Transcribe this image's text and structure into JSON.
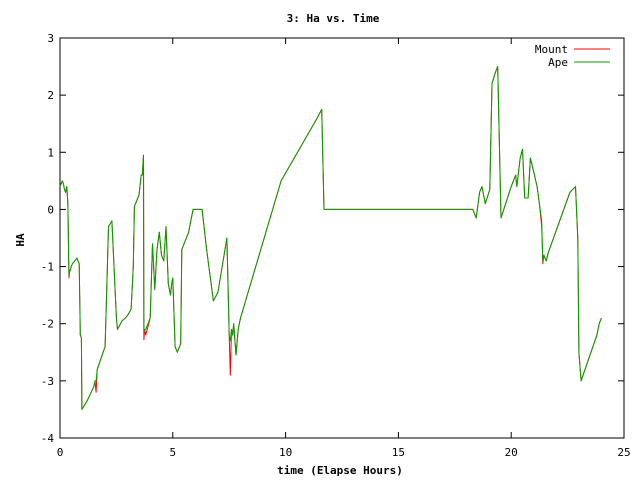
{
  "chart_data": {
    "type": "line",
    "title": "3: Ha vs. Time",
    "xlabel": "time (Elapse Hours)",
    "ylabel": "HA",
    "xlim": [
      0,
      25
    ],
    "ylim": [
      -4,
      3
    ],
    "xticks": [
      0,
      5,
      10,
      15,
      20,
      25
    ],
    "yticks": [
      -4,
      -3,
      -2,
      -1,
      0,
      1,
      2,
      3
    ],
    "grid": false,
    "legend_position": "top-right",
    "series": [
      {
        "name": "Mount",
        "color": "#ff0000",
        "points": [
          [
            0.0,
            0.4
          ],
          [
            0.1,
            0.5
          ],
          [
            0.15,
            0.45
          ],
          [
            0.2,
            0.35
          ],
          [
            0.25,
            0.3
          ],
          [
            0.3,
            0.4
          ],
          [
            0.32,
            0.3
          ],
          [
            0.35,
            0.05
          ],
          [
            0.37,
            -0.4
          ],
          [
            0.38,
            -0.85
          ],
          [
            0.4,
            -1.2
          ],
          [
            0.42,
            -1.1
          ],
          [
            0.5,
            -1.0
          ],
          [
            0.55,
            -0.95
          ],
          [
            0.65,
            -0.9
          ],
          [
            0.75,
            -0.85
          ],
          [
            0.8,
            -0.9
          ],
          [
            0.85,
            -0.95
          ],
          [
            0.9,
            -2.2
          ],
          [
            0.95,
            -2.25
          ],
          [
            0.97,
            -3.5
          ],
          [
            1.2,
            -3.35
          ],
          [
            1.5,
            -3.1
          ],
          [
            1.55,
            -3.0
          ],
          [
            1.6,
            -3.2
          ],
          [
            1.65,
            -2.8
          ],
          [
            2.0,
            -2.4
          ],
          [
            2.15,
            -0.3
          ],
          [
            2.3,
            -0.2
          ],
          [
            2.5,
            -1.9
          ],
          [
            2.55,
            -2.1
          ],
          [
            2.75,
            -1.95
          ],
          [
            2.9,
            -1.9
          ],
          [
            3.0,
            -1.85
          ],
          [
            3.15,
            -1.75
          ],
          [
            3.25,
            -1.0
          ],
          [
            3.3,
            0.05
          ],
          [
            3.5,
            0.25
          ],
          [
            3.6,
            0.6
          ],
          [
            3.65,
            0.6
          ],
          [
            3.7,
            0.95
          ],
          [
            3.72,
            -2.28
          ],
          [
            3.75,
            -2.1
          ],
          [
            3.8,
            -2.2
          ],
          [
            4.0,
            -1.9
          ],
          [
            4.1,
            -0.6
          ],
          [
            4.2,
            -1.4
          ],
          [
            4.3,
            -0.7
          ],
          [
            4.4,
            -0.4
          ],
          [
            4.5,
            -0.8
          ],
          [
            4.6,
            -0.9
          ],
          [
            4.7,
            -0.3
          ],
          [
            4.8,
            -1.3
          ],
          [
            4.9,
            -1.5
          ],
          [
            4.95,
            -1.3
          ],
          [
            5.0,
            -1.2
          ],
          [
            5.1,
            -2.4
          ],
          [
            5.2,
            -2.5
          ],
          [
            5.35,
            -2.35
          ],
          [
            5.4,
            -0.7
          ],
          [
            5.5,
            -0.6
          ],
          [
            5.7,
            -0.4
          ],
          [
            5.8,
            -0.2
          ],
          [
            5.9,
            0.0
          ],
          [
            6.3,
            0.0
          ],
          [
            6.5,
            -0.7
          ],
          [
            6.8,
            -1.6
          ],
          [
            7.0,
            -1.45
          ],
          [
            7.4,
            -0.5
          ],
          [
            7.5,
            -2.2
          ],
          [
            7.55,
            -2.9
          ],
          [
            7.6,
            -2.1
          ],
          [
            7.65,
            -2.2
          ],
          [
            7.7,
            -2.0
          ],
          [
            7.8,
            -2.55
          ],
          [
            7.9,
            -2.1
          ],
          [
            8.0,
            -1.9
          ],
          [
            9.8,
            0.5
          ],
          [
            11.4,
            1.6
          ],
          [
            11.6,
            1.75
          ],
          [
            11.7,
            0.0
          ],
          [
            18.3,
            0.0
          ],
          [
            18.45,
            -0.15
          ],
          [
            18.6,
            0.3
          ],
          [
            18.7,
            0.4
          ],
          [
            18.85,
            0.1
          ],
          [
            19.05,
            0.35
          ],
          [
            19.15,
            2.2
          ],
          [
            19.3,
            2.4
          ],
          [
            19.4,
            2.5
          ],
          [
            19.55,
            -0.15
          ],
          [
            20.0,
            0.4
          ],
          [
            20.2,
            0.6
          ],
          [
            20.25,
            0.4
          ],
          [
            20.4,
            0.9
          ],
          [
            20.5,
            1.05
          ],
          [
            20.6,
            0.2
          ],
          [
            20.75,
            0.2
          ],
          [
            20.85,
            0.9
          ],
          [
            21.0,
            0.65
          ],
          [
            21.15,
            0.4
          ],
          [
            21.25,
            0.1
          ],
          [
            21.35,
            -0.3
          ],
          [
            21.4,
            -0.95
          ],
          [
            21.45,
            -0.8
          ],
          [
            21.55,
            -0.9
          ],
          [
            21.65,
            -0.75
          ],
          [
            22.6,
            0.3
          ],
          [
            22.85,
            0.4
          ],
          [
            22.95,
            -0.5
          ],
          [
            23.0,
            -2.5
          ],
          [
            23.1,
            -3.0
          ],
          [
            23.8,
            -2.2
          ],
          [
            23.9,
            -2.0
          ],
          [
            24.0,
            -1.9
          ]
        ]
      },
      {
        "name": "Ape",
        "color": "#00a000",
        "points": [
          [
            0.0,
            0.4
          ],
          [
            0.1,
            0.5
          ],
          [
            0.15,
            0.45
          ],
          [
            0.2,
            0.35
          ],
          [
            0.25,
            0.3
          ],
          [
            0.3,
            0.4
          ],
          [
            0.32,
            0.3
          ],
          [
            0.35,
            0.1
          ],
          [
            0.37,
            -0.4
          ],
          [
            0.38,
            -0.85
          ],
          [
            0.4,
            -1.15
          ],
          [
            0.42,
            -1.1
          ],
          [
            0.5,
            -1.0
          ],
          [
            0.55,
            -0.95
          ],
          [
            0.65,
            -0.9
          ],
          [
            0.75,
            -0.85
          ],
          [
            0.8,
            -0.9
          ],
          [
            0.85,
            -0.95
          ],
          [
            0.9,
            -2.2
          ],
          [
            0.95,
            -2.25
          ],
          [
            0.97,
            -3.5
          ],
          [
            1.2,
            -3.35
          ],
          [
            1.5,
            -3.1
          ],
          [
            1.55,
            -3.0
          ],
          [
            1.6,
            -3.0
          ],
          [
            1.65,
            -2.8
          ],
          [
            2.0,
            -2.4
          ],
          [
            2.15,
            -0.3
          ],
          [
            2.3,
            -0.2
          ],
          [
            2.5,
            -1.9
          ],
          [
            2.55,
            -2.1
          ],
          [
            2.75,
            -1.95
          ],
          [
            2.9,
            -1.9
          ],
          [
            3.0,
            -1.85
          ],
          [
            3.15,
            -1.75
          ],
          [
            3.25,
            -1.0
          ],
          [
            3.3,
            0.05
          ],
          [
            3.5,
            0.25
          ],
          [
            3.6,
            0.6
          ],
          [
            3.65,
            0.6
          ],
          [
            3.7,
            0.95
          ],
          [
            3.72,
            -2.15
          ],
          [
            3.75,
            -2.1
          ],
          [
            3.8,
            -2.1
          ],
          [
            4.0,
            -1.9
          ],
          [
            4.1,
            -0.6
          ],
          [
            4.2,
            -1.4
          ],
          [
            4.3,
            -0.7
          ],
          [
            4.4,
            -0.4
          ],
          [
            4.5,
            -0.8
          ],
          [
            4.6,
            -0.9
          ],
          [
            4.7,
            -0.3
          ],
          [
            4.8,
            -1.3
          ],
          [
            4.9,
            -1.5
          ],
          [
            4.95,
            -1.3
          ],
          [
            5.0,
            -1.2
          ],
          [
            5.1,
            -2.4
          ],
          [
            5.2,
            -2.5
          ],
          [
            5.35,
            -2.35
          ],
          [
            5.4,
            -0.7
          ],
          [
            5.5,
            -0.6
          ],
          [
            5.7,
            -0.4
          ],
          [
            5.8,
            -0.2
          ],
          [
            5.9,
            0.0
          ],
          [
            6.3,
            0.0
          ],
          [
            6.5,
            -0.7
          ],
          [
            6.8,
            -1.6
          ],
          [
            7.0,
            -1.45
          ],
          [
            7.4,
            -0.5
          ],
          [
            7.5,
            -2.2
          ],
          [
            7.55,
            -2.3
          ],
          [
            7.6,
            -2.1
          ],
          [
            7.65,
            -2.2
          ],
          [
            7.7,
            -2.0
          ],
          [
            7.8,
            -2.55
          ],
          [
            7.9,
            -2.1
          ],
          [
            8.0,
            -1.9
          ],
          [
            9.8,
            0.5
          ],
          [
            11.4,
            1.6
          ],
          [
            11.6,
            1.75
          ],
          [
            11.7,
            0.0
          ],
          [
            18.3,
            0.0
          ],
          [
            18.45,
            -0.15
          ],
          [
            18.6,
            0.3
          ],
          [
            18.7,
            0.4
          ],
          [
            18.85,
            0.1
          ],
          [
            19.05,
            0.35
          ],
          [
            19.15,
            2.2
          ],
          [
            19.3,
            2.4
          ],
          [
            19.4,
            2.5
          ],
          [
            19.55,
            -0.15
          ],
          [
            20.0,
            0.4
          ],
          [
            20.2,
            0.6
          ],
          [
            20.25,
            0.4
          ],
          [
            20.4,
            0.9
          ],
          [
            20.5,
            1.05
          ],
          [
            20.6,
            0.2
          ],
          [
            20.75,
            0.2
          ],
          [
            20.85,
            0.9
          ],
          [
            21.0,
            0.65
          ],
          [
            21.15,
            0.4
          ],
          [
            21.25,
            0.1
          ],
          [
            21.35,
            -0.2
          ],
          [
            21.4,
            -0.9
          ],
          [
            21.45,
            -0.8
          ],
          [
            21.55,
            -0.9
          ],
          [
            21.65,
            -0.75
          ],
          [
            22.6,
            0.3
          ],
          [
            22.85,
            0.4
          ],
          [
            22.95,
            -0.5
          ],
          [
            23.0,
            -2.5
          ],
          [
            23.1,
            -3.0
          ],
          [
            23.8,
            -2.2
          ],
          [
            23.9,
            -2.0
          ],
          [
            24.0,
            -1.9
          ]
        ]
      }
    ]
  }
}
